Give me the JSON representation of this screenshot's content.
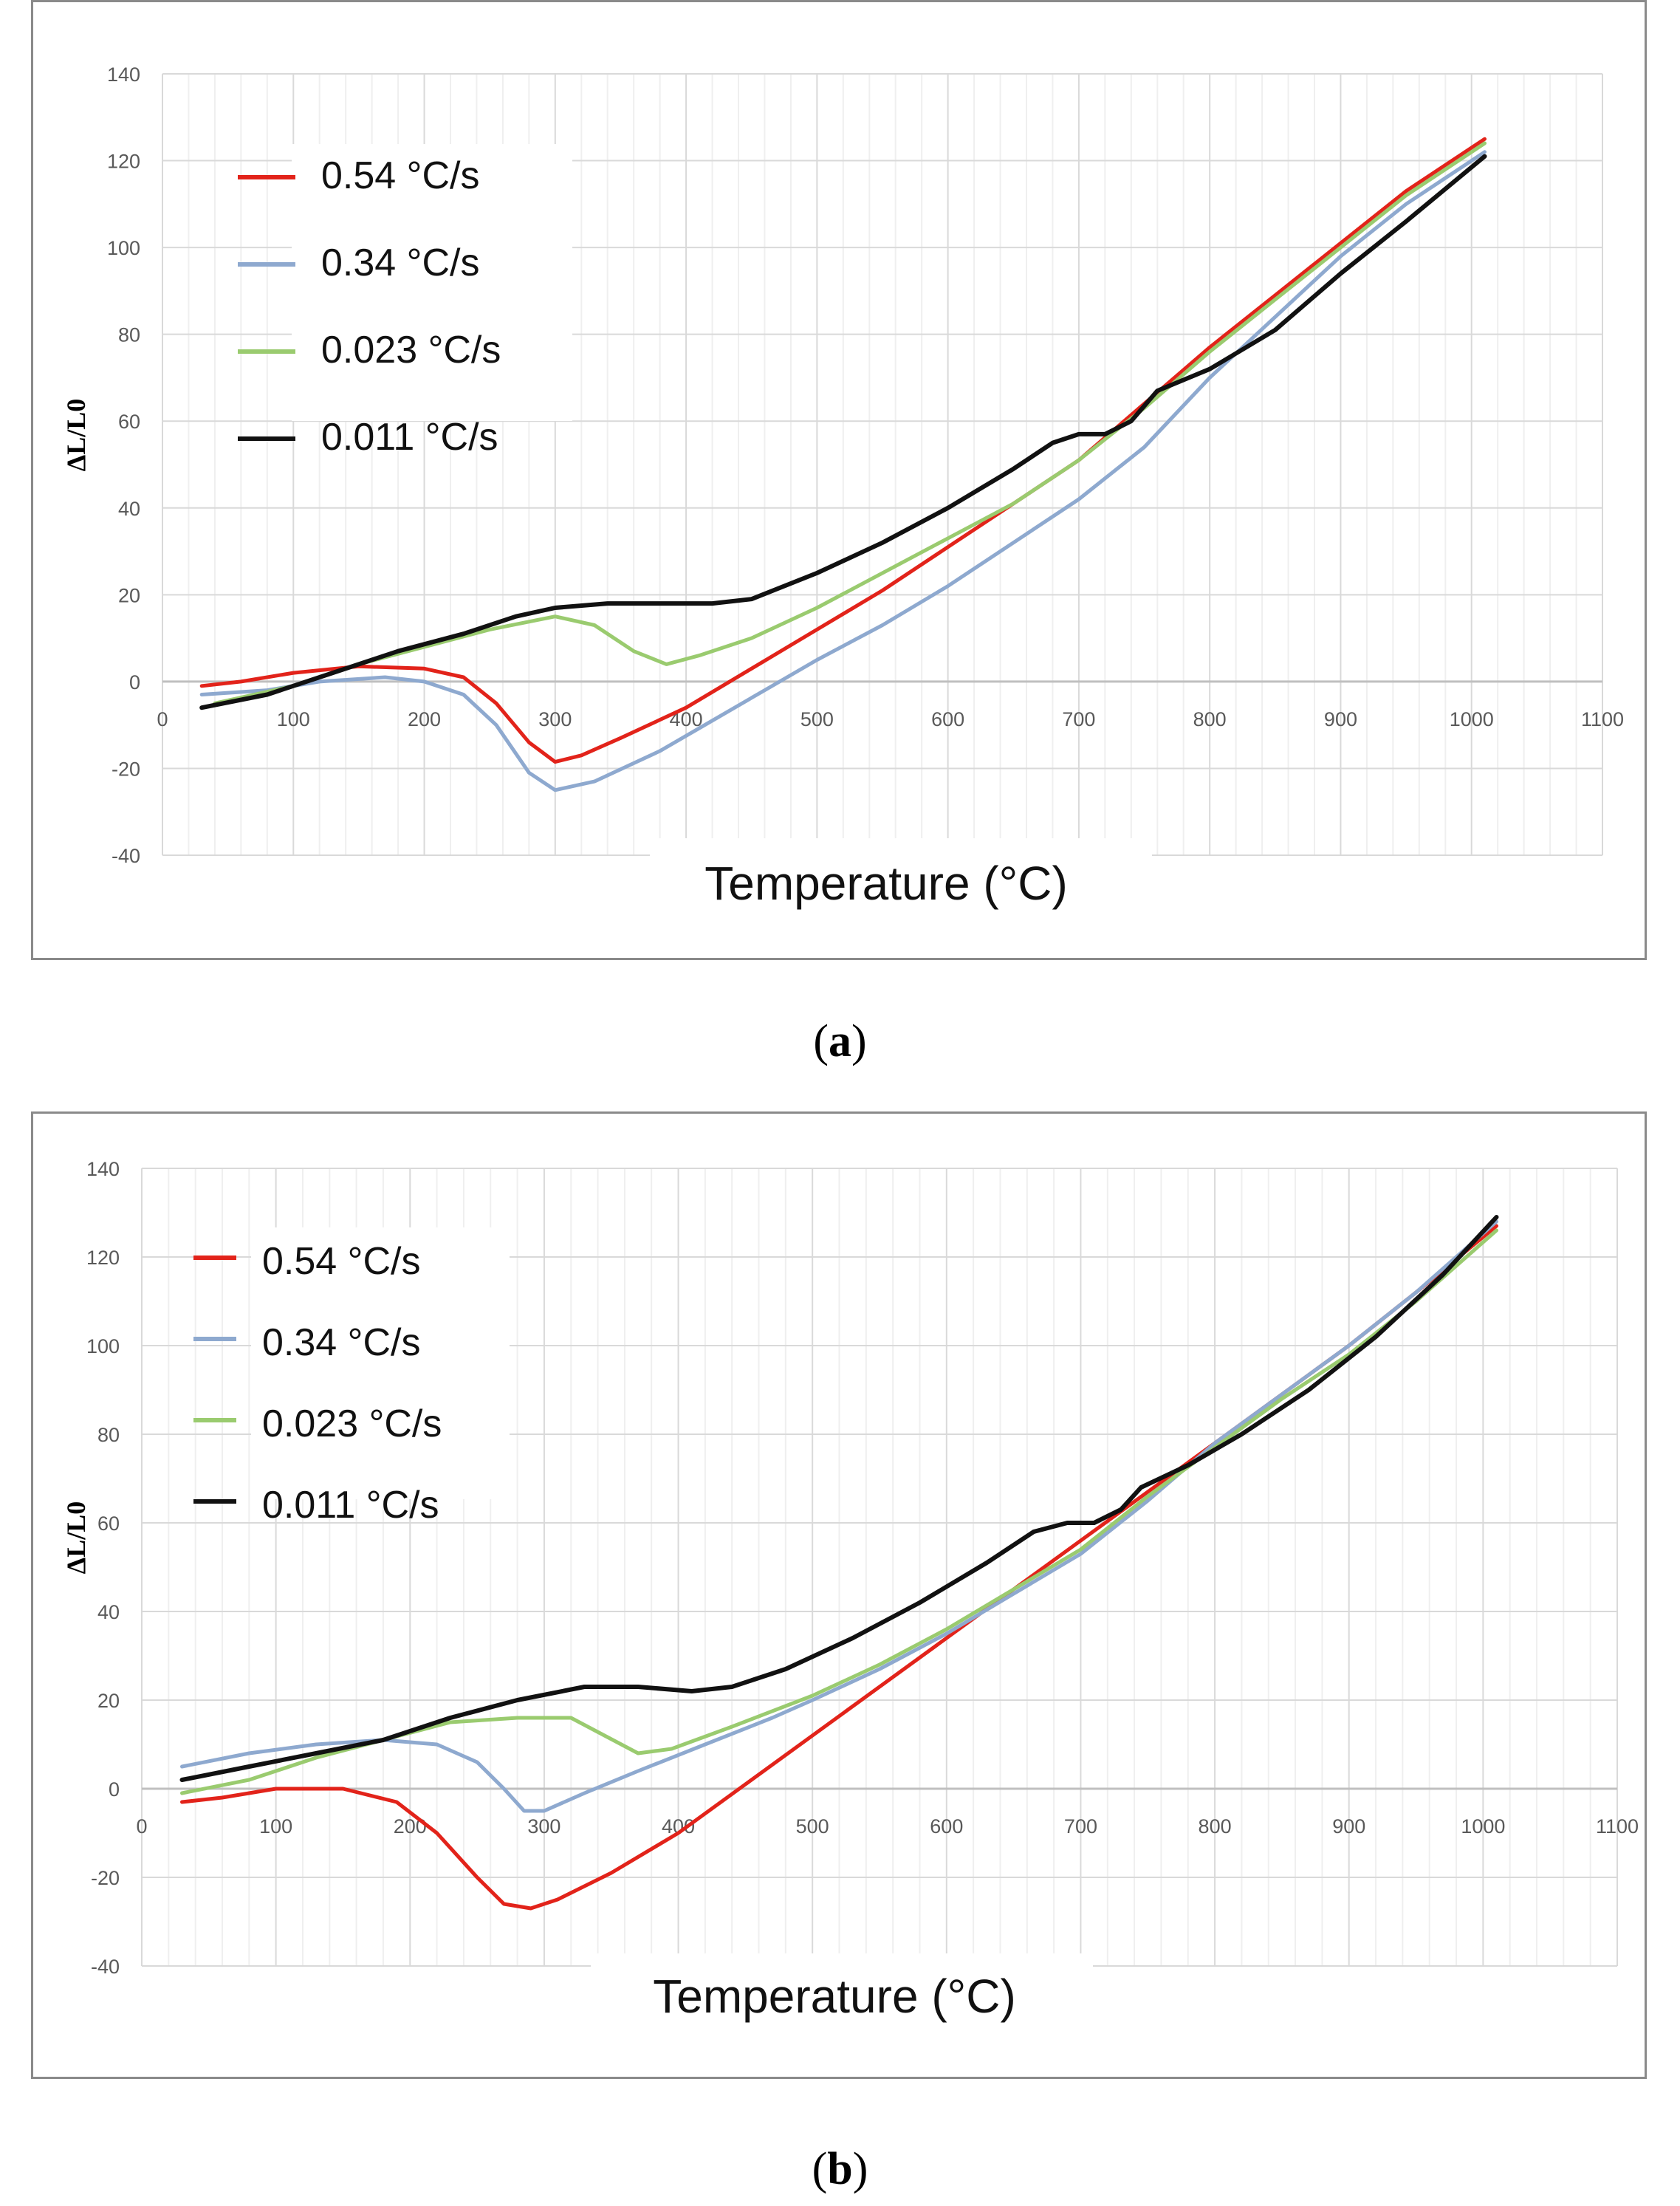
{
  "figure": {
    "caption_a": "a",
    "caption_b": "b"
  },
  "colors": {
    "red": "#e2231a",
    "blue": "#8ea9cf",
    "green": "#9acb6f",
    "black": "#111111",
    "orange": "#f0a050"
  },
  "chart_data": [
    {
      "id": "a",
      "type": "line",
      "title": "",
      "xlabel": "Temperature (°C)",
      "ylabel": "ΔL/L0",
      "xlim": [
        0,
        1100
      ],
      "ylim": [
        -40,
        140
      ],
      "xticks": [
        0,
        100,
        200,
        300,
        400,
        500,
        600,
        700,
        800,
        900,
        1000,
        1100
      ],
      "yticks": [
        -40,
        -20,
        0,
        20,
        40,
        60,
        80,
        100,
        120,
        140
      ],
      "grid": true,
      "legend_position": "top-left",
      "series": [
        {
          "name": "0.54 °C/s",
          "color": "red",
          "points": [
            [
              30,
              -1
            ],
            [
              60,
              0
            ],
            [
              100,
              2
            ],
            [
              150,
              3.5
            ],
            [
              200,
              3
            ],
            [
              230,
              1
            ],
            [
              255,
              -5
            ],
            [
              280,
              -14
            ],
            [
              300,
              -18.5
            ],
            [
              320,
              -17
            ],
            [
              350,
              -13
            ],
            [
              400,
              -6
            ],
            [
              450,
              3
            ],
            [
              500,
              12
            ],
            [
              550,
              21
            ],
            [
              600,
              31
            ],
            [
              650,
              41
            ],
            [
              700,
              51
            ],
            [
              750,
              64
            ],
            [
              800,
              77
            ],
            [
              850,
              89
            ],
            [
              900,
              101
            ],
            [
              950,
              113
            ],
            [
              1010,
              125
            ]
          ]
        },
        {
          "name": "0.34 °C/s",
          "color": "blue",
          "points": [
            [
              30,
              -3
            ],
            [
              80,
              -2
            ],
            [
              120,
              0
            ],
            [
              170,
              1
            ],
            [
              200,
              0
            ],
            [
              230,
              -3
            ],
            [
              255,
              -10
            ],
            [
              280,
              -21
            ],
            [
              300,
              -25
            ],
            [
              330,
              -23
            ],
            [
              380,
              -16
            ],
            [
              420,
              -9
            ],
            [
              460,
              -2
            ],
            [
              500,
              5
            ],
            [
              550,
              13
            ],
            [
              600,
              22
            ],
            [
              650,
              32
            ],
            [
              700,
              42
            ],
            [
              750,
              54
            ],
            [
              800,
              70
            ],
            [
              850,
              84
            ],
            [
              900,
              98
            ],
            [
              950,
              110
            ],
            [
              1010,
              122
            ]
          ]
        },
        {
          "name": "0.023 °C/s",
          "color": "green",
          "points": [
            [
              40,
              -5
            ],
            [
              100,
              -1
            ],
            [
              150,
              4
            ],
            [
              200,
              8
            ],
            [
              250,
              12
            ],
            [
              300,
              15
            ],
            [
              330,
              13
            ],
            [
              360,
              7
            ],
            [
              385,
              4
            ],
            [
              410,
              6
            ],
            [
              450,
              10
            ],
            [
              500,
              17
            ],
            [
              550,
              25
            ],
            [
              600,
              33
            ],
            [
              650,
              41
            ],
            [
              700,
              51
            ],
            [
              750,
              63
            ],
            [
              800,
              76
            ],
            [
              850,
              88
            ],
            [
              900,
              100
            ],
            [
              950,
              112
            ],
            [
              1010,
              124
            ]
          ]
        },
        {
          "name": "0.011 °C/s",
          "color": "black",
          "points": [
            [
              30,
              -6
            ],
            [
              80,
              -3
            ],
            [
              130,
              2
            ],
            [
              180,
              7
            ],
            [
              230,
              11
            ],
            [
              270,
              15
            ],
            [
              300,
              17
            ],
            [
              340,
              18
            ],
            [
              380,
              18
            ],
            [
              420,
              18
            ],
            [
              450,
              19
            ],
            [
              500,
              25
            ],
            [
              550,
              32
            ],
            [
              600,
              40
            ],
            [
              650,
              49
            ],
            [
              680,
              55
            ],
            [
              700,
              57
            ],
            [
              720,
              57
            ],
            [
              740,
              60
            ],
            [
              760,
              67
            ],
            [
              800,
              72
            ],
            [
              850,
              81
            ],
            [
              900,
              94
            ],
            [
              950,
              106
            ],
            [
              1010,
              121
            ]
          ]
        }
      ]
    },
    {
      "id": "b",
      "type": "line",
      "title": "",
      "xlabel": "Temperature (°C)",
      "ylabel": "ΔL/L0",
      "xlim": [
        0,
        1100
      ],
      "ylim": [
        -40,
        140
      ],
      "xticks": [
        0,
        100,
        200,
        300,
        400,
        500,
        600,
        700,
        800,
        900,
        1000,
        1100
      ],
      "yticks": [
        -40,
        -20,
        0,
        20,
        40,
        60,
        80,
        100,
        120,
        140
      ],
      "grid": true,
      "legend_position": "top-left",
      "series": [
        {
          "name": "0.54 °C/s",
          "color": "red",
          "points": [
            [
              30,
              -3
            ],
            [
              60,
              -2
            ],
            [
              100,
              0
            ],
            [
              150,
              0
            ],
            [
              190,
              -3
            ],
            [
              220,
              -10
            ],
            [
              250,
              -20
            ],
            [
              270,
              -26
            ],
            [
              290,
              -27
            ],
            [
              310,
              -25
            ],
            [
              350,
              -19
            ],
            [
              400,
              -10
            ],
            [
              450,
              1
            ],
            [
              500,
              12
            ],
            [
              550,
              23
            ],
            [
              600,
              34
            ],
            [
              650,
              45
            ],
            [
              700,
              56
            ],
            [
              750,
              67
            ],
            [
              800,
              78
            ],
            [
              850,
              89
            ],
            [
              900,
              100
            ],
            [
              950,
              112
            ],
            [
              1010,
              127
            ]
          ]
        },
        {
          "name": "0.34 °C/s",
          "color": "blue",
          "points": [
            [
              30,
              5
            ],
            [
              80,
              8
            ],
            [
              130,
              10
            ],
            [
              180,
              11
            ],
            [
              220,
              10
            ],
            [
              250,
              6
            ],
            [
              270,
              0
            ],
            [
              285,
              -5
            ],
            [
              300,
              -5
            ],
            [
              330,
              -1
            ],
            [
              370,
              4
            ],
            [
              420,
              10
            ],
            [
              470,
              16
            ],
            [
              500,
              20
            ],
            [
              550,
              27
            ],
            [
              600,
              35
            ],
            [
              650,
              44
            ],
            [
              700,
              53
            ],
            [
              750,
              65
            ],
            [
              800,
              78
            ],
            [
              850,
              89
            ],
            [
              900,
              100
            ],
            [
              950,
              112
            ],
            [
              1010,
              128
            ]
          ]
        },
        {
          "name": "0.023 °C/s",
          "color": "green",
          "points": [
            [
              30,
              -1
            ],
            [
              80,
              2
            ],
            [
              130,
              7
            ],
            [
              180,
              11
            ],
            [
              230,
              15
            ],
            [
              280,
              16
            ],
            [
              320,
              16
            ],
            [
              345,
              12
            ],
            [
              370,
              8
            ],
            [
              395,
              9
            ],
            [
              440,
              14
            ],
            [
              500,
              21
            ],
            [
              550,
              28
            ],
            [
              600,
              36
            ],
            [
              650,
              45
            ],
            [
              700,
              54
            ],
            [
              750,
              66
            ],
            [
              800,
              77
            ],
            [
              850,
              88
            ],
            [
              900,
              98
            ],
            [
              950,
              110
            ],
            [
              1010,
              126
            ]
          ]
        },
        {
          "name": "0.011 °C/s",
          "color": "black",
          "points": [
            [
              30,
              2
            ],
            [
              80,
              5
            ],
            [
              130,
              8
            ],
            [
              180,
              11
            ],
            [
              230,
              16
            ],
            [
              280,
              20
            ],
            [
              330,
              23
            ],
            [
              370,
              23
            ],
            [
              410,
              22
            ],
            [
              440,
              23
            ],
            [
              480,
              27
            ],
            [
              530,
              34
            ],
            [
              580,
              42
            ],
            [
              630,
              51
            ],
            [
              665,
              58
            ],
            [
              690,
              60
            ],
            [
              710,
              60
            ],
            [
              730,
              63
            ],
            [
              745,
              68
            ],
            [
              780,
              73
            ],
            [
              820,
              80
            ],
            [
              870,
              90
            ],
            [
              920,
              102
            ],
            [
              970,
              116
            ],
            [
              1010,
              129
            ]
          ]
        }
      ]
    }
  ]
}
